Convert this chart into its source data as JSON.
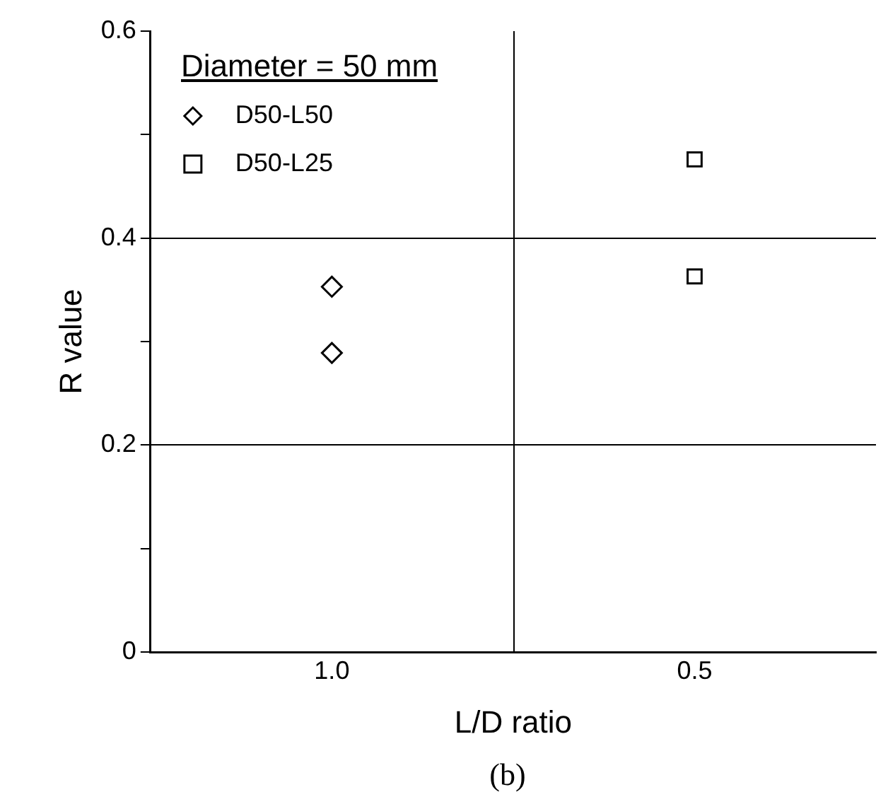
{
  "chart_data": {
    "type": "scatter",
    "xlabel": "L/D ratio",
    "ylabel": "R value",
    "legend_title": "Diameter = 50 mm",
    "categories": [
      "1.0",
      "0.5"
    ],
    "series": [
      {
        "name": "D50-L50",
        "color": "#000000",
        "marker": "diamond",
        "x": [
          "1.0",
          "1.0"
        ],
        "values": [
          0.353,
          0.289
        ]
      },
      {
        "name": "D50-L25",
        "color": "#000000",
        "marker": "square",
        "x": [
          "0.5",
          "0.5"
        ],
        "values": [
          0.476,
          0.363
        ]
      }
    ],
    "ylim": [
      0,
      0.6
    ],
    "yticks": [
      0,
      {
        "value": 0.1,
        "label": null
      },
      0.2,
      {
        "value": 0.3,
        "label": null
      },
      0.4,
      {
        "value": 0.5,
        "label": null
      },
      0.6
    ],
    "grid": true,
    "legend": "top left",
    "annotations": [
      "(b)"
    ]
  }
}
